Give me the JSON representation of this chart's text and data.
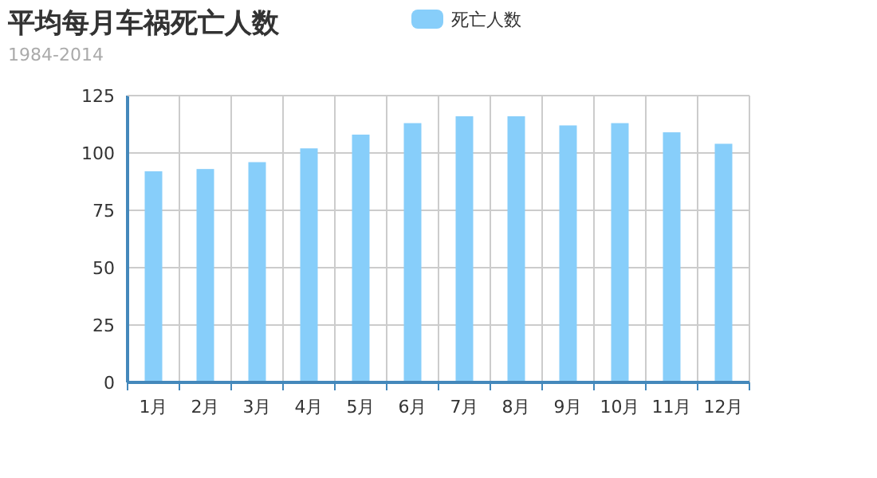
{
  "chart_data": {
    "type": "bar",
    "title": "平均每月车祸死亡人数",
    "subtitle": "1984-2014",
    "categories": [
      "1月",
      "2月",
      "3月",
      "4月",
      "5月",
      "6月",
      "7月",
      "8月",
      "9月",
      "10月",
      "11月",
      "12月"
    ],
    "series": [
      {
        "name": "死亡人数",
        "color": "#87cefa",
        "values": [
          92,
          93,
          96,
          102,
          108,
          113,
          116,
          116,
          112,
          113,
          109,
          104
        ]
      }
    ],
    "ylim": [
      0,
      125
    ],
    "yticks": [
      0,
      25,
      50,
      75,
      100,
      125
    ],
    "grid": true,
    "legend": "top"
  }
}
